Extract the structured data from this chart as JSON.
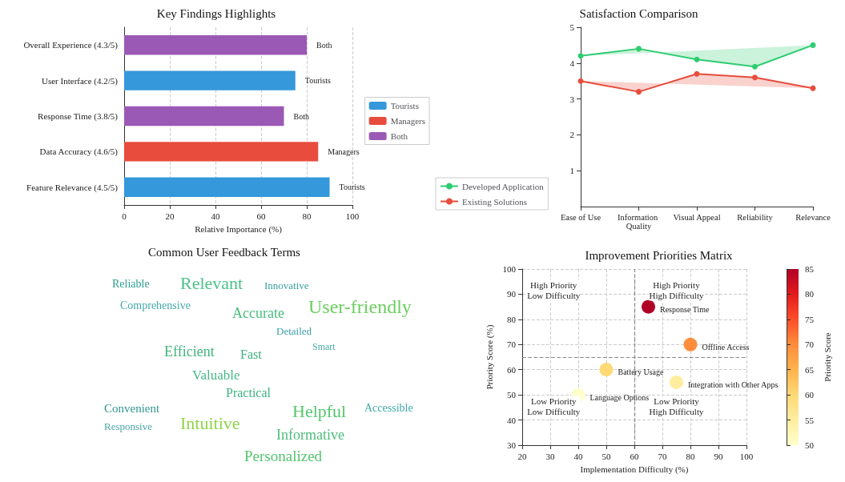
{
  "chart_data": [
    {
      "type": "bar",
      "title": "Key Findings Highlights",
      "xlabel": "Relative Importance (%)",
      "orientation": "horizontal",
      "stacked": true,
      "categories": [
        "Overall Experience (4.3/5)",
        "User Interface (4.2/5)",
        "Response Time (3.8/5)",
        "Data Accuracy (4.6/5)",
        "Feature Relevance (4.5/5)"
      ],
      "series": [
        {
          "name": "Tourists",
          "color": "#3498db",
          "values": [
            null,
            75,
            null,
            null,
            90
          ],
          "value_labels": [
            null,
            "Tourists",
            null,
            null,
            "Tourists"
          ]
        },
        {
          "name": "Managers",
          "color": "#e74c3c",
          "values": [
            null,
            null,
            null,
            85,
            null
          ],
          "value_labels": [
            null,
            null,
            null,
            "Managers",
            null
          ]
        },
        {
          "name": "Both",
          "color": "#9b59b6",
          "values": [
            80,
            null,
            70,
            null,
            null
          ],
          "value_labels": [
            "Both",
            null,
            "Both",
            null,
            null
          ]
        }
      ],
      "xlim": [
        0,
        100
      ],
      "xticks": [
        0,
        20,
        40,
        60,
        80,
        100
      ],
      "grid": "x",
      "legend": "right"
    },
    {
      "type": "line",
      "title": "Satisfaction Comparison",
      "categories": [
        "Ease of Use",
        "Information Quality",
        "Visual Appeal",
        "Reliability",
        "Relevance"
      ],
      "series": [
        {
          "name": "Developed Application",
          "color": "#2ecc71",
          "values": [
            4.2,
            4.4,
            4.1,
            3.9,
            4.5
          ]
        },
        {
          "name": "Existing Solutions",
          "color": "#e74c3c",
          "values": [
            3.5,
            3.2,
            3.7,
            3.6,
            3.3
          ]
        }
      ],
      "ylim": [
        0,
        5
      ],
      "yticks": [
        1,
        2,
        3,
        4,
        5
      ],
      "marker": "circle",
      "grid": false,
      "legend": "bottom left"
    },
    {
      "type": "other",
      "title": "Common User Feedback Terms",
      "annotations": [
        "Reliable",
        "Relevant",
        "Innovative",
        "Comprehensive",
        "Accurate",
        "User-friendly",
        "Detailed",
        "Smart",
        "Efficient",
        "Fast",
        "Valuable",
        "Practical",
        "Convenient",
        "Responsive",
        "Helpful",
        "Accessible",
        "Intuitive",
        "Informative",
        "Personalized"
      ]
    },
    {
      "type": "scatter",
      "title": "Improvement Priorities Matrix",
      "xlabel": "Implementation Difficulty (%)",
      "ylabel": "Priority Score (%)",
      "clabel": "Priority Score",
      "x": [
        65,
        80,
        50,
        75,
        40
      ],
      "values": [
        85,
        70,
        60,
        55,
        50
      ],
      "cvalues": [
        85,
        70,
        60,
        55,
        50
      ],
      "value_labels": [
        "Response Time",
        "Offline Access",
        "Battery Usage",
        "Integration with Other Apps",
        "Language Options"
      ],
      "clim": [
        50,
        85
      ],
      "cticks": [
        50,
        55,
        60,
        65,
        70,
        75,
        80,
        85
      ],
      "xlim": [
        20,
        100
      ],
      "xticks": [
        20,
        30,
        40,
        50,
        60,
        70,
        80,
        90,
        100
      ],
      "ylim": [
        30,
        100
      ],
      "yticks": [
        30,
        40,
        50,
        60,
        70,
        80,
        90,
        100
      ],
      "grid": true,
      "marker": "circle",
      "ref_lines": [
        {
          "axis": "x",
          "value": 60,
          "line_style": "dashed",
          "color": "#888888"
        },
        {
          "axis": "y",
          "value": 65,
          "line_style": "dashed",
          "color": "#888888"
        }
      ],
      "annotations": [
        "High Priority\nLow Difficulty",
        "High Priority\nHigh Difficulty",
        "Low Priority\nLow Difficulty",
        "Low Priority\nHigh Difficulty"
      ]
    }
  ]
}
